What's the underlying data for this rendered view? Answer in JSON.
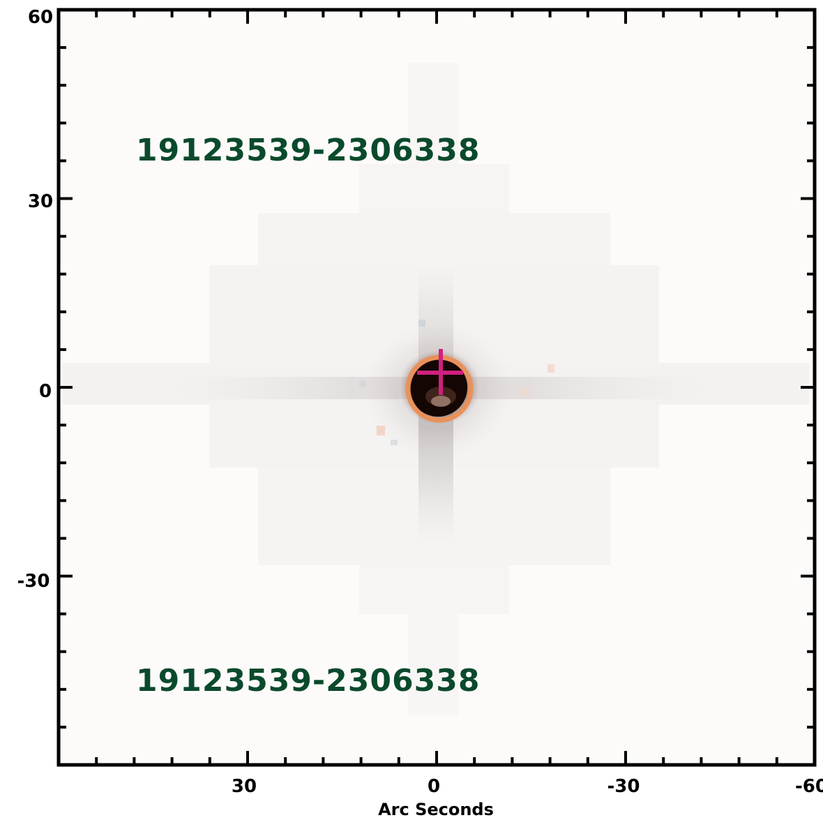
{
  "labels": {
    "source_top": "19123539-2306338",
    "source_bottom": "19123539-2306338",
    "x_axis_title": "Arc Seconds"
  },
  "axes": {
    "x_ticks": [
      "30",
      "0",
      "-30",
      "-60"
    ],
    "y_ticks": [
      "60",
      "30",
      "0",
      "-30"
    ],
    "x_range_arcsec": [
      60,
      -60
    ],
    "y_range_arcsec": [
      -60,
      60
    ]
  },
  "markers": {
    "aperture_circle_center_arcsec": [
      -0.5,
      0
    ],
    "aperture_circle_radius_arcsec": 5,
    "cross_center_arcsec": [
      -1,
      3
    ]
  },
  "colors": {
    "label": "#0a4a2c",
    "aperture_circle": "#e9915a",
    "cross": "#d0207e",
    "frame": "#000000",
    "background": "#fdfbfa"
  }
}
